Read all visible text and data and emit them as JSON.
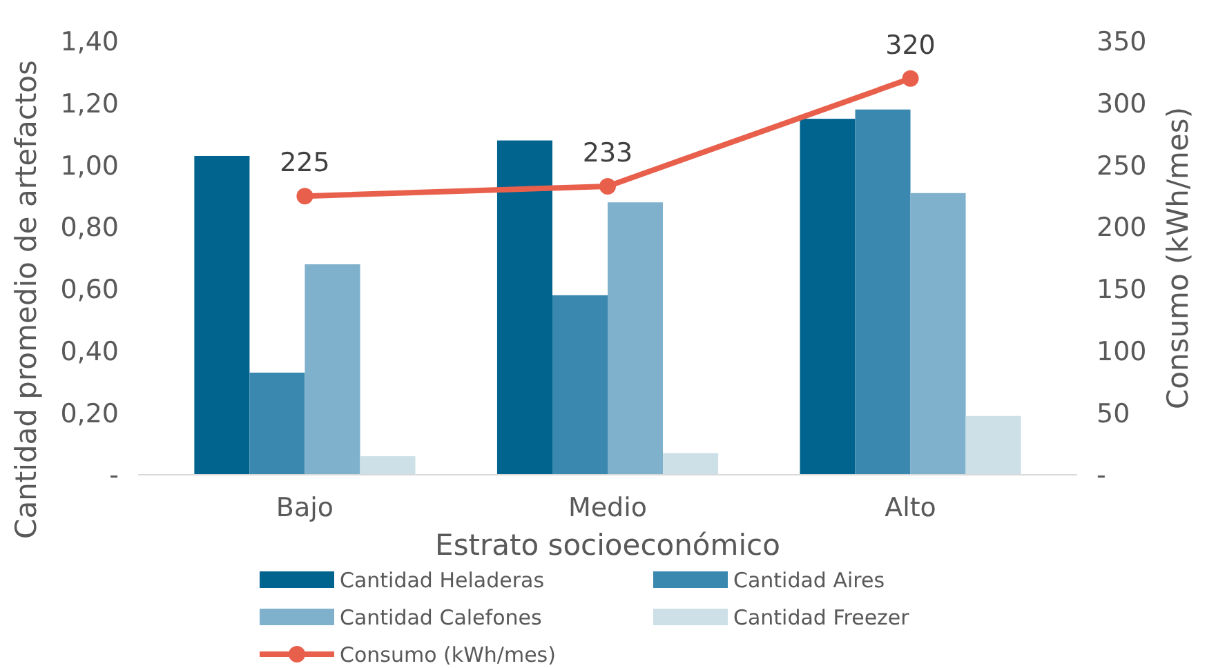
{
  "chart_data": {
    "type": "bar",
    "xlabel": "Estrato socioeconómico",
    "ylabel": "Cantidad promedio de artefactos",
    "y2label": "Consumo (kWh/mes)",
    "categories": [
      "Bajo",
      "Medio",
      "Alto"
    ],
    "series": [
      {
        "name": "Cantidad Heladeras",
        "color": "#00648f",
        "values": [
          1.03,
          1.08,
          1.15
        ]
      },
      {
        "name": "Cantidad Aires",
        "color": "#3a88b0",
        "values": [
          0.33,
          0.58,
          1.18
        ]
      },
      {
        "name": "Cantidad Calefones",
        "color": "#7fb1cc",
        "values": [
          0.68,
          0.88,
          0.91
        ]
      },
      {
        "name": "Cantidad Freezer",
        "color": "#cde0e8",
        "values": [
          0.06,
          0.07,
          0.19
        ]
      },
      {
        "name": "Consumo (kWh/mes)",
        "type": "line",
        "axis": "y2",
        "color": "#e8604c",
        "marker": "circle",
        "values": [
          225,
          233,
          320
        ],
        "value_labels": [
          "225",
          "233",
          "320"
        ]
      }
    ],
    "ylim": [
      0,
      1.4
    ],
    "yticks": [
      {
        "value": 0,
        "label": "-"
      },
      {
        "value": 0.2,
        "label": "0,20"
      },
      {
        "value": 0.4,
        "label": "0,40"
      },
      {
        "value": 0.6,
        "label": "0,60"
      },
      {
        "value": 0.8,
        "label": "0,80"
      },
      {
        "value": 1,
        "label": "1,00"
      },
      {
        "value": 1.2,
        "label": "1,20"
      },
      {
        "value": 1.4,
        "label": "1,40"
      }
    ],
    "y2lim": [
      0,
      350
    ],
    "y2ticks": [
      {
        "value": 0,
        "label": "-"
      },
      50,
      100,
      150,
      200,
      250,
      300,
      350
    ],
    "grid": false,
    "legend": "bottom"
  }
}
